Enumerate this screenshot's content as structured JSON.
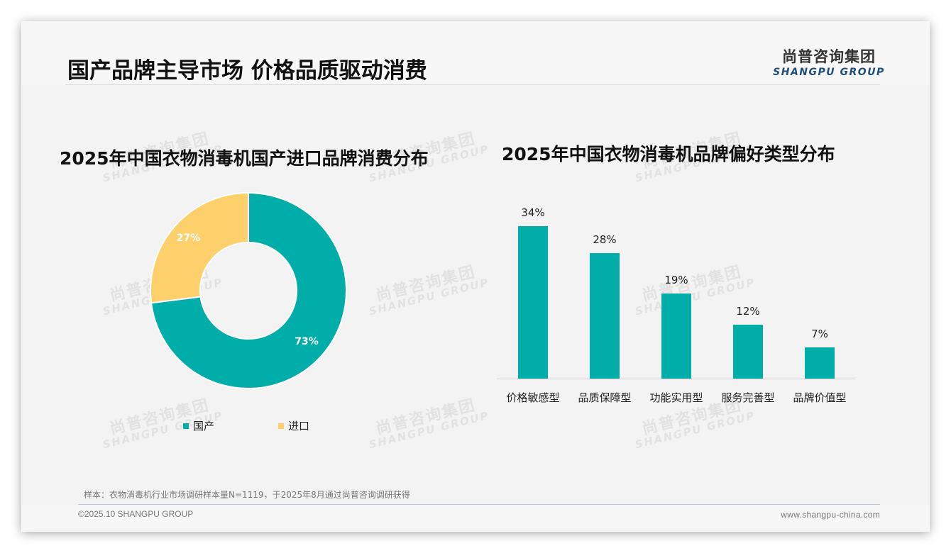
{
  "header": {
    "title": "国产品牌主导市场 价格品质驱动消费",
    "logo_cn": "尚普咨询集团",
    "logo_en": "SHANGPU GROUP"
  },
  "watermark": {
    "cn": "尚普咨询集团",
    "en": "SHANGPU GROUP"
  },
  "colors": {
    "teal": "#00ada9",
    "yellow": "#fdd06b",
    "logo_blue": "#1f4e79"
  },
  "left_chart": {
    "title": "2025年中国衣物消毒机国产进口品牌消费分布",
    "slices": [
      {
        "name": "国产",
        "value": 73,
        "label": "73%",
        "color": "#00ada9"
      },
      {
        "name": "进口",
        "value": 27,
        "label": "27%",
        "color": "#fdd06b"
      }
    ],
    "legend": [
      {
        "label": "国产"
      },
      {
        "label": "进口"
      }
    ]
  },
  "right_chart": {
    "title": "2025年中国衣物消毒机品牌偏好类型分布",
    "bars": [
      {
        "category": "价格敏感型",
        "value": 34,
        "label": "34%"
      },
      {
        "category": "品质保障型",
        "value": 28,
        "label": "28%"
      },
      {
        "category": "功能实用型",
        "value": 19,
        "label": "19%"
      },
      {
        "category": "服务完善型",
        "value": 12,
        "label": "12%"
      },
      {
        "category": "品牌价值型",
        "value": 7,
        "label": "7%"
      }
    ]
  },
  "footer": {
    "note": "样本：衣物消毒机行业市场调研样本量N=1119，于2025年8月通过尚普咨询调研获得",
    "copyright": "©2025.10 SHANGPU GROUP",
    "website": "www.shangpu-china.com"
  },
  "chart_data": [
    {
      "type": "pie",
      "title": "2025年中国衣物消毒机国产进口品牌消费分布",
      "categories": [
        "国产",
        "进口"
      ],
      "values": [
        73,
        27
      ],
      "unit": "%",
      "donut": true,
      "legend_position": "bottom",
      "colors": [
        "#00ada9",
        "#fdd06b"
      ]
    },
    {
      "type": "bar",
      "title": "2025年中国衣物消毒机品牌偏好类型分布",
      "categories": [
        "价格敏感型",
        "品质保障型",
        "功能实用型",
        "服务完善型",
        "品牌价值型"
      ],
      "values": [
        34,
        28,
        19,
        12,
        7
      ],
      "unit": "%",
      "xlabel": "",
      "ylabel": "",
      "ylim": [
        0,
        40
      ],
      "grid": false,
      "data_labels": true,
      "colors": [
        "#00ada9"
      ]
    }
  ]
}
